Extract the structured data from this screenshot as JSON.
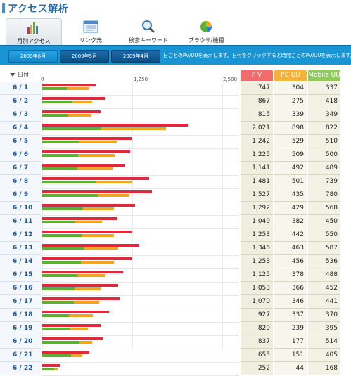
{
  "title": "アクセス解析",
  "tabs": [
    {
      "label": "月別アクセス",
      "icon": "bar-chart-icon"
    },
    {
      "label": "リンク元",
      "icon": "window-icon"
    },
    {
      "label": "検索キーワード",
      "icon": "magnifier-icon"
    },
    {
      "label": "ブラウザ/機種",
      "icon": "pie-chart-icon"
    }
  ],
  "months": [
    "2009年6月",
    "2009年5月",
    "2009年4月"
  ],
  "month_note": "日ごとのPV/UUを表示します。日付をクリックすると時間ごとのPV/UUを表示します。",
  "sort_label": "日付",
  "axis_ticks": [
    "0",
    "1,250",
    "2,500"
  ],
  "columns": {
    "pv": "P V",
    "pc": "PC UU",
    "mobile": "Mobile UU"
  },
  "colors": {
    "pv": "#e2283a",
    "pc": "#f2a51e",
    "mobile": "#5cb230",
    "accent": "#1a95d4"
  },
  "chart_data": {
    "type": "bar",
    "xlim": [
      0,
      2500
    ],
    "categories": [
      "6 / 1",
      "6 / 2",
      "6 / 3",
      "6 / 4",
      "6 / 5",
      "6 / 6",
      "6 / 7",
      "6 / 8",
      "6 / 9",
      "6 / 10",
      "6 / 11",
      "6 / 12",
      "6 / 13",
      "6 / 14",
      "6 / 15",
      "6 / 16",
      "6 / 17",
      "6 / 18",
      "6 / 19",
      "6 / 20",
      "6 / 21",
      "6 / 22"
    ],
    "series": [
      {
        "name": "P V",
        "values": [
          747,
          867,
          815,
          2021,
          1242,
          1225,
          1141,
          1481,
          1527,
          1292,
          1049,
          1253,
          1346,
          1253,
          1125,
          1053,
          1070,
          927,
          820,
          837,
          655,
          252
        ]
      },
      {
        "name": "PC UU",
        "values": [
          304,
          275,
          339,
          898,
          529,
          509,
          492,
          501,
          435,
          429,
          382,
          442,
          463,
          456,
          378,
          366,
          346,
          337,
          239,
          177,
          151,
          44
        ]
      },
      {
        "name": "Mobile UU",
        "values": [
          337,
          418,
          349,
          822,
          510,
          500,
          489,
          739,
          780,
          568,
          450,
          550,
          587,
          536,
          488,
          452,
          441,
          370,
          395,
          514,
          405,
          168
        ]
      }
    ],
    "pv_display": [
      "747",
      "867",
      "815",
      "2,021",
      "1,242",
      "1,225",
      "1,141",
      "1,481",
      "1,527",
      "1,292",
      "1,049",
      "1,253",
      "1,346",
      "1,253",
      "1,125",
      "1,053",
      "1,070",
      "927",
      "820",
      "837",
      "655",
      "252"
    ]
  }
}
